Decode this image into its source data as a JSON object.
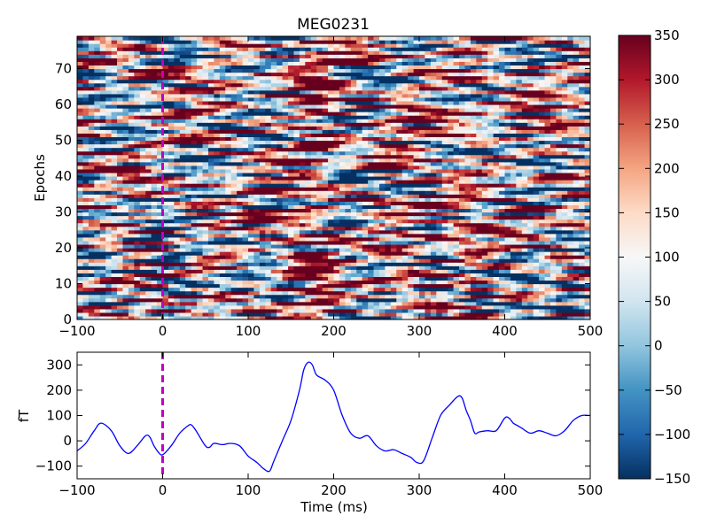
{
  "chart_data": [
    {
      "type": "heatmap",
      "title": "MEG0231",
      "xlabel": "",
      "ylabel": "Epochs",
      "xlim": [
        -100,
        500
      ],
      "ylim": [
        0,
        79
      ],
      "x_ticks": [
        "−100",
        "0",
        "100",
        "200",
        "300",
        "400",
        "500"
      ],
      "y_ticks": [
        "0",
        "10",
        "20",
        "30",
        "40",
        "50",
        "60",
        "70"
      ],
      "marker_x": 0,
      "colormap": "RdBu_r",
      "clim": [
        -150,
        350
      ]
    },
    {
      "type": "line",
      "title": "",
      "xlabel": "Time (ms)",
      "ylabel": "fT",
      "xlim": [
        -100,
        500
      ],
      "ylim": [
        -150,
        350
      ],
      "x_ticks": [
        "−100",
        "0",
        "100",
        "200",
        "300",
        "400",
        "500"
      ],
      "y_ticks": [
        "−100",
        "0",
        "100",
        "200",
        "300"
      ],
      "marker_x": 0,
      "series": [
        {
          "color": "#0000ff",
          "x": [
            -100,
            -90,
            -80,
            -72,
            -60,
            -50,
            -40,
            -30,
            -20,
            -15,
            -10,
            -5,
            0,
            10,
            20,
            30,
            34,
            40,
            50,
            55,
            60,
            70,
            80,
            90,
            100,
            110,
            118,
            125,
            130,
            140,
            150,
            160,
            165,
            170,
            175,
            180,
            190,
            200,
            210,
            220,
            230,
            240,
            250,
            260,
            270,
            280,
            290,
            297,
            305,
            315,
            325,
            335,
            345,
            350,
            355,
            360,
            365,
            370,
            380,
            390,
            400,
            405,
            410,
            415,
            420,
            430,
            440,
            450,
            460,
            470,
            480,
            490,
            500
          ],
          "y": [
            -40,
            -10,
            40,
            70,
            40,
            -20,
            -50,
            -20,
            20,
            15,
            -20,
            -45,
            -55,
            -20,
            30,
            60,
            62,
            35,
            -20,
            -25,
            -10,
            -15,
            -10,
            -20,
            -60,
            -85,
            -110,
            -120,
            -80,
            0,
            80,
            200,
            280,
            310,
            300,
            260,
            240,
            200,
            100,
            30,
            10,
            20,
            -20,
            -40,
            -35,
            -50,
            -65,
            -85,
            -80,
            10,
            100,
            140,
            175,
            170,
            120,
            80,
            30,
            35,
            40,
            40,
            90,
            90,
            70,
            60,
            50,
            30,
            40,
            30,
            20,
            40,
            80,
            100,
            100
          ]
        }
      ]
    }
  ]
}
